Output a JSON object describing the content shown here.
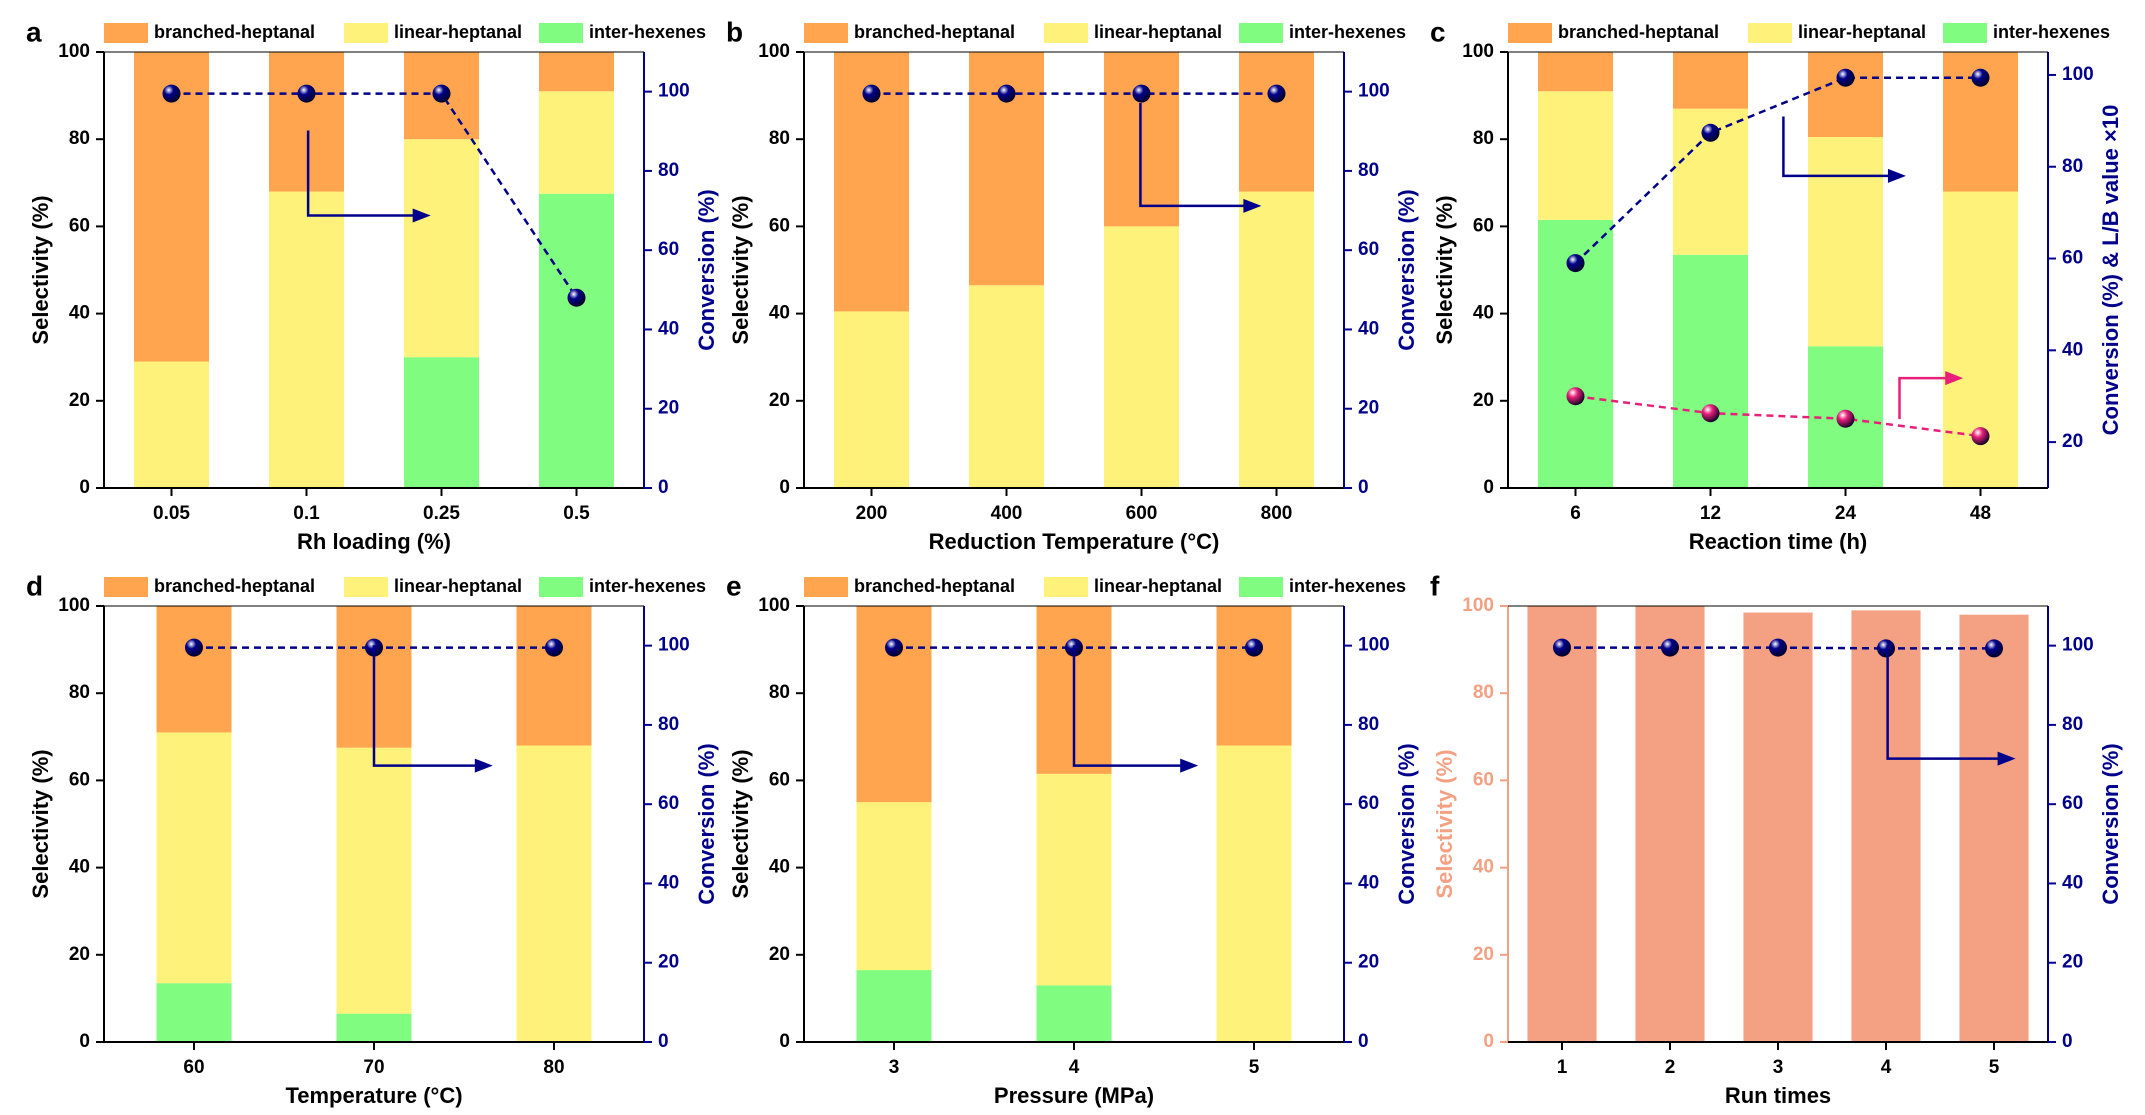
{
  "chart_data": [
    {
      "type": "bar",
      "label": "a",
      "xlabel": "Rh loading (%)",
      "ylabel": "Selectivity (%)",
      "y2label": "Conversion (%)",
      "categories": [
        "0.05",
        "0.1",
        "0.25",
        "0.5"
      ],
      "series": [
        {
          "name": "branched-heptanal",
          "color": "#FFA54F",
          "values": [
            71,
            32,
            20,
            9
          ]
        },
        {
          "name": "linear-heptanal",
          "color": "#FFF27A",
          "values": [
            29,
            68,
            50,
            23.5
          ]
        },
        {
          "name": "inter-hexenes",
          "color": "#80FC80",
          "values": [
            0,
            0,
            30,
            67.5
          ]
        },
        {
          "type": "line",
          "axis": "y2",
          "color": "#00008B",
          "values": [
            99.5,
            99.5,
            99.5,
            48
          ]
        }
      ],
      "ylim": [
        0,
        100
      ],
      "yticks": [
        0,
        20,
        40,
        60,
        80,
        100
      ],
      "y2lim": [
        0,
        110
      ],
      "y2ticks": [
        0,
        20,
        40,
        60,
        80,
        100
      ],
      "y2color": "#00008B"
    },
    {
      "type": "bar",
      "label": "b",
      "xlabel": "Reduction Temperature (°C)",
      "ylabel": "Selectivity (%)",
      "y2label": "Conversion (%)",
      "categories": [
        "200",
        "400",
        "600",
        "800"
      ],
      "series": [
        {
          "name": "branched-heptanal",
          "color": "#FFA54F",
          "values": [
            59.5,
            53.5,
            40,
            32
          ]
        },
        {
          "name": "linear-heptanal",
          "color": "#FFF27A",
          "values": [
            40.5,
            46.5,
            60,
            68
          ]
        },
        {
          "name": "inter-hexenes",
          "color": "#80FC80",
          "values": [
            0,
            0,
            0,
            0
          ]
        },
        {
          "type": "line",
          "axis": "y2",
          "color": "#00008B",
          "values": [
            99.5,
            99.5,
            99.5,
            99.5
          ]
        }
      ],
      "ylim": [
        0,
        100
      ],
      "yticks": [
        0,
        20,
        40,
        60,
        80,
        100
      ],
      "y2lim": [
        0,
        110
      ],
      "y2ticks": [
        0,
        20,
        40,
        60,
        80,
        100
      ],
      "y2color": "#00008B"
    },
    {
      "type": "bar",
      "label": "c",
      "xlabel": "Reaction time (h)",
      "ylabel": "Selectivity (%)",
      "y2label": "Conversion (%) & L/B value ×10",
      "categories": [
        "6",
        "12",
        "24",
        "48"
      ],
      "series": [
        {
          "name": "branched-heptanal",
          "color": "#FFA54F",
          "values": [
            9,
            13,
            19.5,
            32
          ]
        },
        {
          "name": "linear-heptanal",
          "color": "#FFF27A",
          "values": [
            29.5,
            33.5,
            48,
            68
          ]
        },
        {
          "name": "inter-hexenes",
          "color": "#80FC80",
          "values": [
            61.5,
            53.5,
            32.5,
            0
          ]
        },
        {
          "type": "line",
          "axis": "y2",
          "color": "#00008B",
          "values": [
            59,
            87.4,
            99.4,
            99.4
          ]
        },
        {
          "type": "line",
          "axis": "y2",
          "color": "#E8207A",
          "values": [
            30,
            26.3,
            25.1,
            21.3
          ]
        }
      ],
      "ylim": [
        0,
        100
      ],
      "yticks": [
        0,
        20,
        40,
        60,
        80,
        100
      ],
      "y2lim": [
        10,
        105
      ],
      "y2ticks": [
        20,
        40,
        60,
        80,
        100
      ],
      "y2color": "#00008B"
    },
    {
      "type": "bar",
      "label": "d",
      "xlabel": "Temperature (°C)",
      "ylabel": "Selectivity (%)",
      "y2label": "Conversion (%)",
      "categories": [
        "60",
        "70",
        "80"
      ],
      "series": [
        {
          "name": "branched-heptanal",
          "color": "#FFA54F",
          "values": [
            29,
            32.5,
            32
          ]
        },
        {
          "name": "linear-heptanal",
          "color": "#FFF27A",
          "values": [
            57.5,
            61,
            68
          ]
        },
        {
          "name": "inter-hexenes",
          "color": "#80FC80",
          "values": [
            13.5,
            6.5,
            0
          ]
        },
        {
          "type": "line",
          "axis": "y2",
          "color": "#00008B",
          "values": [
            99.5,
            99.5,
            99.5
          ]
        }
      ],
      "ylim": [
        0,
        100
      ],
      "yticks": [
        0,
        20,
        40,
        60,
        80,
        100
      ],
      "y2lim": [
        0,
        110
      ],
      "y2ticks": [
        0,
        20,
        40,
        60,
        80,
        100
      ],
      "y2color": "#00008B"
    },
    {
      "type": "bar",
      "label": "e",
      "xlabel": "Pressure (MPa)",
      "ylabel": "Selectivity (%)",
      "y2label": "Conversion (%)",
      "categories": [
        "3",
        "4",
        "5"
      ],
      "series": [
        {
          "name": "branched-heptanal",
          "color": "#FFA54F",
          "values": [
            45,
            38.5,
            32
          ]
        },
        {
          "name": "linear-heptanal",
          "color": "#FFF27A",
          "values": [
            38.5,
            48.5,
            68
          ]
        },
        {
          "name": "inter-hexenes",
          "color": "#80FC80",
          "values": [
            16.5,
            13,
            0
          ]
        },
        {
          "type": "line",
          "axis": "y2",
          "color": "#00008B",
          "values": [
            99.5,
            99.5,
            99.5
          ]
        }
      ],
      "ylim": [
        0,
        100
      ],
      "yticks": [
        0,
        20,
        40,
        60,
        80,
        100
      ],
      "y2lim": [
        0,
        110
      ],
      "y2ticks": [
        0,
        20,
        40,
        60,
        80,
        100
      ],
      "y2color": "#00008B"
    },
    {
      "type": "bar",
      "label": "f",
      "xlabel": "Run times",
      "ylabel": "Selectivity (%)",
      "y2label": "Conversion (%)",
      "categories": [
        "1",
        "2",
        "3",
        "4",
        "5"
      ],
      "series": [
        {
          "color": "#F4A082",
          "values": [
            100,
            100,
            98.5,
            99,
            98
          ]
        },
        {
          "type": "line",
          "axis": "y2",
          "color": "#00008B",
          "values": [
            99.5,
            99.5,
            99.5,
            99.3,
            99.3
          ]
        }
      ],
      "ylim": [
        0,
        100
      ],
      "yticks": [
        0,
        20,
        40,
        60,
        80,
        100
      ],
      "y2lim": [
        0,
        110
      ],
      "y2ticks": [
        0,
        20,
        40,
        60,
        80,
        100
      ],
      "y2color": "#00008B",
      "ycolor": "#F4A082"
    }
  ]
}
